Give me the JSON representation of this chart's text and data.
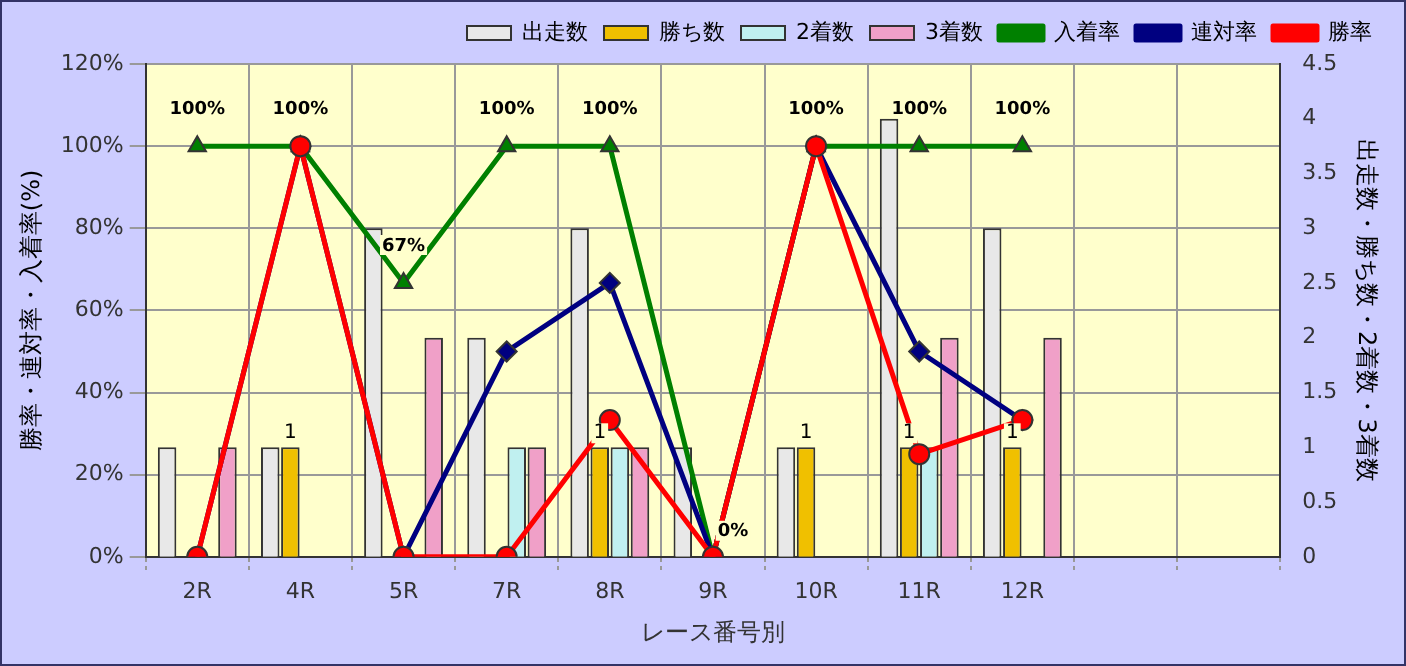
{
  "chart_data": {
    "type": "bar",
    "xlabel": "レース番号別",
    "ylabel": "勝率・連対率・入着率(%)",
    "y2label": "出走数・勝ち数・2着数・3着数",
    "categories": [
      "2R",
      "4R",
      "5R",
      "7R",
      "8R",
      "9R",
      "10R",
      "11R",
      "12R",
      null,
      null
    ],
    "series": [
      {
        "name": "出走数",
        "axis": "y2",
        "color": "#e8e8e8",
        "values": [
          1,
          1,
          3,
          2,
          3,
          1,
          1,
          4,
          3,
          null,
          null
        ]
      },
      {
        "name": "勝ち数",
        "axis": "y2",
        "color": "#f0c000",
        "values": [
          0,
          1,
          0,
          0,
          1,
          0,
          1,
          1,
          1,
          null,
          null
        ],
        "value_labels": [
          null,
          "1",
          null,
          null,
          "1",
          null,
          "1",
          "1",
          "1",
          null,
          null
        ]
      },
      {
        "name": "2着数",
        "axis": "y2",
        "color": "#c0f0f0",
        "values": [
          0,
          0,
          0,
          1,
          1,
          0,
          0,
          1,
          0,
          null,
          null
        ]
      },
      {
        "name": "3着数",
        "axis": "y2",
        "color": "#f0a0c8",
        "values": [
          1,
          0,
          2,
          1,
          1,
          0,
          0,
          2,
          2,
          null,
          null
        ]
      },
      {
        "name": "入着率",
        "type": "line",
        "color": "#008000",
        "marker": "triangle",
        "values": [
          100,
          100,
          66.7,
          100,
          100,
          0,
          100,
          100,
          100,
          null,
          null
        ],
        "value_labels": [
          "100%",
          "100%",
          "67%",
          "100%",
          "100%",
          "0%",
          "100%",
          "100%",
          "100%",
          null,
          null
        ]
      },
      {
        "name": "連対率",
        "type": "line",
        "color": "#000080",
        "marker": "diamond",
        "values": [
          0,
          100,
          0,
          50,
          66.7,
          0,
          100,
          50,
          33.3,
          null,
          null
        ]
      },
      {
        "name": "勝率",
        "type": "line",
        "color": "#ff0000",
        "marker": "circle",
        "values": [
          0,
          100,
          0,
          0,
          33.3,
          0,
          100,
          25,
          33.3,
          null,
          null
        ]
      }
    ],
    "ylim": [
      0,
      120
    ],
    "yticks": [
      {
        "value": 0,
        "label": "0%"
      },
      {
        "value": 20,
        "label": "20%"
      },
      {
        "value": 40,
        "label": "40%"
      },
      {
        "value": 60,
        "label": "60%"
      },
      {
        "value": 80,
        "label": "80%"
      },
      {
        "value": 100,
        "label": "100%"
      },
      {
        "value": 120,
        "label": "120%"
      }
    ],
    "y2lim": [
      0,
      4.5
    ],
    "y2ticks": [
      0,
      0.5,
      1,
      1.5,
      2,
      2.5,
      3,
      3.5,
      4,
      4.5
    ],
    "grid": true,
    "legend": "top"
  }
}
